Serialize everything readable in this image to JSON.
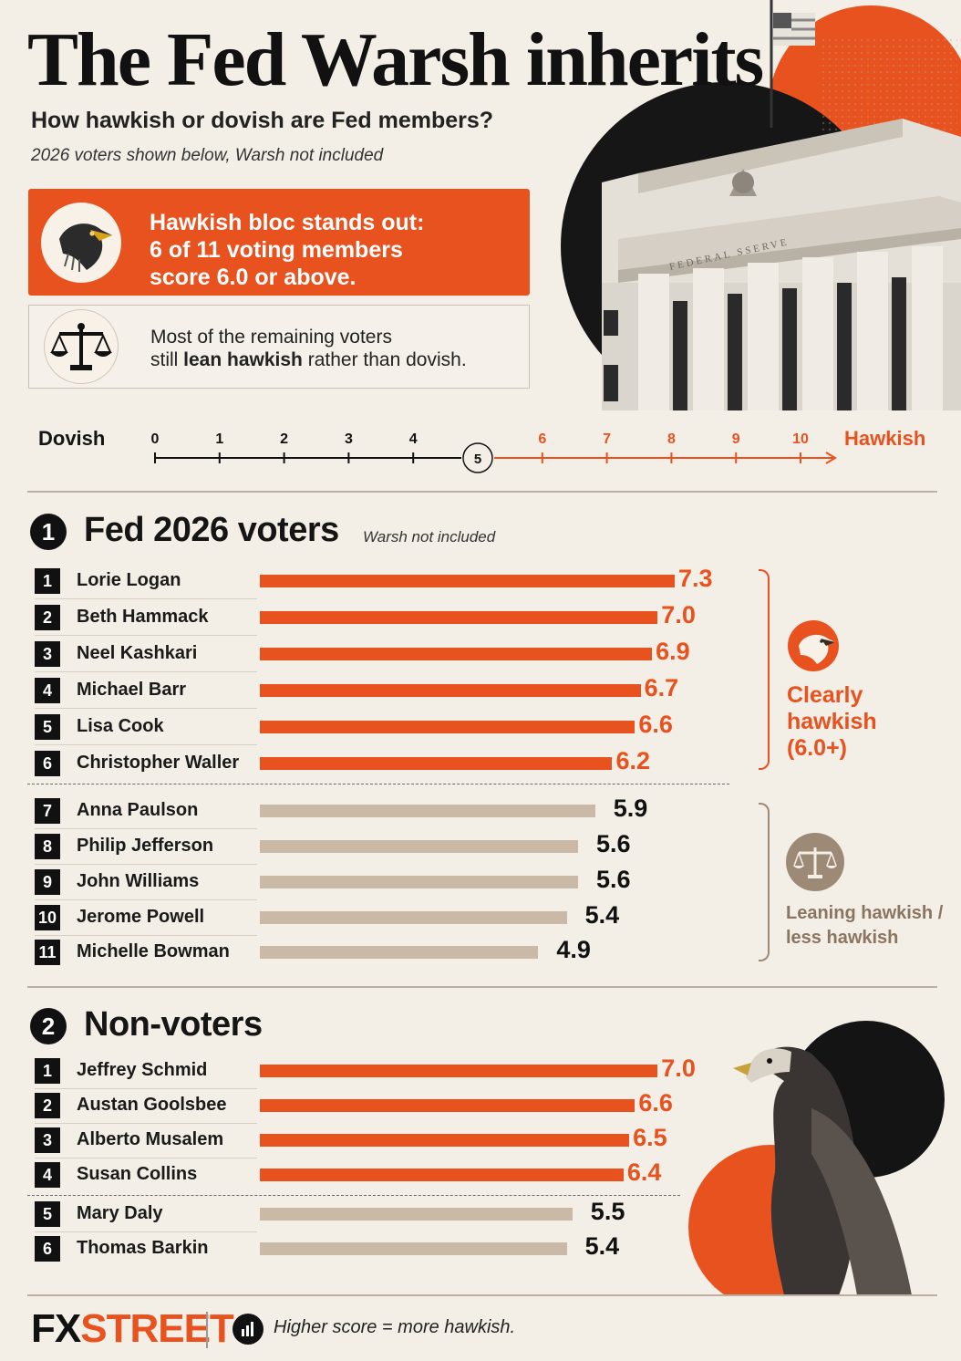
{
  "header": {
    "title": "The Fed Warsh inherits",
    "subtitle": "How hawkish or dovish are Fed members?",
    "note": "2026 voters shown below, Warsh not included"
  },
  "callouts": {
    "primary_line1": "Hawkish bloc stands out:",
    "primary_line2": "6 of 11 voting members",
    "primary_line3": "score 6.0 or above.",
    "secondary_line1": "Most of the remaining voters",
    "secondary_pre": "still ",
    "secondary_bold": "lean hawkish",
    "secondary_post": " rather than dovish."
  },
  "building_sign": "FEDERAL SSERVE",
  "scale": {
    "left_label": "Dovish",
    "right_label": "Hawkish",
    "ticks": [
      "0",
      "1",
      "2",
      "3",
      "4",
      "5",
      "6",
      "7",
      "8",
      "9",
      "10"
    ],
    "midpoint": "5"
  },
  "colors": {
    "hawk": "#e8521f",
    "lean": "#c9b9a6",
    "lean_text": "#8a7560",
    "ink": "#111111"
  },
  "sections": {
    "voters": {
      "number": "1",
      "title": "Fed 2026 voters",
      "note": "Warsh not included"
    },
    "nonvoters": {
      "number": "2",
      "title": "Non-voters"
    }
  },
  "groups": {
    "hawkish_label": [
      "Clearly",
      "hawkish",
      "(6.0+)"
    ],
    "leaning_label": [
      "Leaning hawkish /",
      "less hawkish"
    ]
  },
  "footer": {
    "logo_part1": "FX",
    "logo_part2": "STREET",
    "note": "Higher score = more hawkish."
  },
  "chart_data": [
    {
      "type": "bar",
      "orientation": "horizontal",
      "title": "Fed 2026 voters",
      "categories": [
        "Lorie Logan",
        "Beth Hammack",
        "Neel Kashkari",
        "Michael Barr",
        "Lisa Cook",
        "Christopher Waller",
        "Anna Paulson",
        "Philip Jefferson",
        "John Williams",
        "Jerome Powell",
        "Michelle Bowman"
      ],
      "ranks": [
        "1",
        "2",
        "3",
        "4",
        "5",
        "6",
        "7",
        "8",
        "9",
        "10",
        "11"
      ],
      "values": [
        7.3,
        7.0,
        6.9,
        6.7,
        6.6,
        6.2,
        5.9,
        5.6,
        5.6,
        5.4,
        4.9
      ],
      "value_labels": [
        "7.3",
        "7.0",
        "6.9",
        "6.7",
        "6.6",
        "6.2",
        "5.9",
        "5.6",
        "5.6",
        "5.4",
        "4.9"
      ],
      "threshold": 6.0,
      "xlim": [
        0,
        10
      ]
    },
    {
      "type": "bar",
      "orientation": "horizontal",
      "title": "Non-voters",
      "categories": [
        "Jeffrey Schmid",
        "Austan Goolsbee",
        "Alberto Musalem",
        "Susan Collins",
        "Mary Daly",
        "Thomas Barkin"
      ],
      "ranks": [
        "1",
        "2",
        "3",
        "4",
        "5",
        "6"
      ],
      "values": [
        7.0,
        6.6,
        6.5,
        6.4,
        5.5,
        5.4
      ],
      "value_labels": [
        "7.0",
        "6.6",
        "6.5",
        "6.4",
        "5.5",
        "5.4"
      ],
      "threshold": 6.0,
      "xlim": [
        0,
        10
      ]
    }
  ]
}
